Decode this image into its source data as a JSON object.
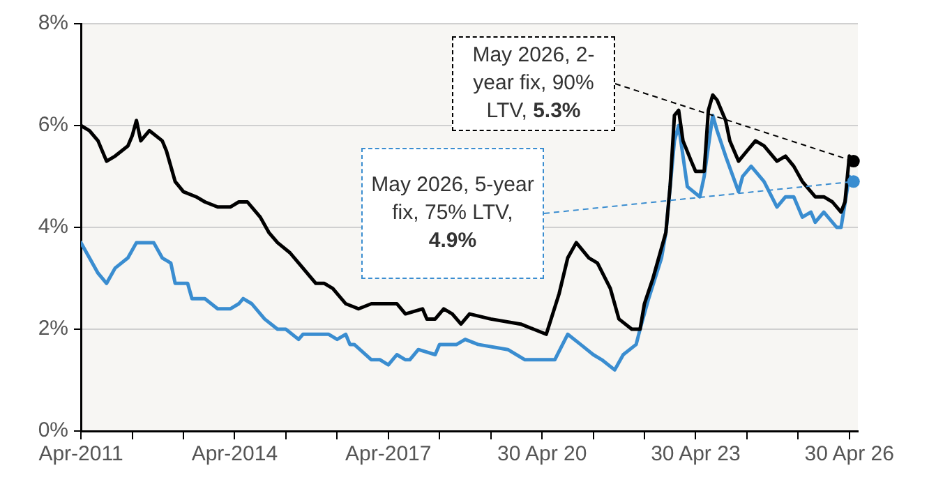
{
  "chart_data": {
    "type": "line",
    "series": [
      {
        "color": "#000000",
        "x": [
          "2011-04",
          "2011-06",
          "2011-08",
          "2011-10",
          "2011-12",
          "2012-03",
          "2012-04",
          "2012-05",
          "2012-06",
          "2012-08",
          "2012-11",
          "2012-12",
          "2013-02",
          "2013-04",
          "2013-07",
          "2013-09",
          "2013-12",
          "2014-03",
          "2014-05",
          "2014-07",
          "2014-10",
          "2014-12",
          "2015-02",
          "2015-05",
          "2015-08",
          "2015-11",
          "2016-01",
          "2016-03",
          "2016-06",
          "2016-09",
          "2016-12",
          "2017-03",
          "2017-06",
          "2017-08",
          "2017-12",
          "2018-01",
          "2018-03",
          "2018-05",
          "2018-07",
          "2018-09",
          "2018-11",
          "2019-04",
          "2019-11",
          "2020-02",
          "2020-05",
          "2020-08",
          "2020-10",
          "2020-12",
          "2021-03",
          "2021-05",
          "2021-08",
          "2021-10",
          "2022-01",
          "2022-03",
          "2022-04",
          "2022-06",
          "2022-09",
          "2022-10",
          "2022-11",
          "2022-12",
          "2023-01",
          "2023-03",
          "2023-04",
          "2023-06",
          "2023-07",
          "2023-08",
          "2023-09",
          "2023-11",
          "2023-12",
          "2024-02",
          "2024-04",
          "2024-06",
          "2024-08",
          "2024-11",
          "2025-01",
          "2025-03",
          "2025-05",
          "2025-08",
          "2025-10",
          "2025-12",
          "2026-02",
          "2026-03",
          "2026-04",
          "2026-05"
        ],
        "values": [
          6.0,
          5.9,
          5.7,
          5.3,
          5.4,
          5.6,
          5.8,
          6.1,
          5.7,
          5.9,
          5.7,
          5.5,
          4.9,
          4.7,
          4.6,
          4.5,
          4.4,
          4.4,
          4.5,
          4.5,
          4.2,
          3.9,
          3.7,
          3.5,
          3.2,
          2.9,
          2.9,
          2.8,
          2.5,
          2.4,
          2.5,
          2.5,
          2.5,
          2.3,
          2.4,
          2.2,
          2.2,
          2.4,
          2.3,
          2.1,
          2.3,
          2.2,
          2.1,
          2.0,
          1.9,
          2.7,
          3.4,
          3.7,
          3.4,
          3.3,
          2.8,
          2.2,
          2.0,
          2.0,
          2.5,
          3.0,
          3.9,
          4.8,
          6.2,
          6.3,
          5.7,
          5.3,
          5.1,
          5.1,
          6.3,
          6.6,
          6.5,
          6.1,
          5.7,
          5.3,
          5.5,
          5.7,
          5.6,
          5.3,
          5.4,
          5.2,
          4.9,
          4.6,
          4.6,
          4.5,
          4.3,
          4.5,
          5.4,
          5.3
        ]
      },
      {
        "color": "#3a8dd0",
        "x": [
          "2011-04",
          "2011-06",
          "2011-08",
          "2011-10",
          "2011-12",
          "2012-03",
          "2012-05",
          "2012-06",
          "2012-09",
          "2012-11",
          "2013-01",
          "2013-02",
          "2013-05",
          "2013-06",
          "2013-09",
          "2013-12",
          "2014-03",
          "2014-05",
          "2014-06",
          "2014-08",
          "2014-11",
          "2015-02",
          "2015-04",
          "2015-07",
          "2015-08",
          "2015-11",
          "2016-02",
          "2016-04",
          "2016-06",
          "2016-07",
          "2016-08",
          "2016-12",
          "2017-02",
          "2017-04",
          "2017-06",
          "2017-08",
          "2017-09",
          "2017-11",
          "2018-03",
          "2018-04",
          "2018-08",
          "2018-10",
          "2019-01",
          "2019-08",
          "2019-12",
          "2020-04",
          "2020-07",
          "2020-10",
          "2021-01",
          "2021-04",
          "2021-06",
          "2021-09",
          "2021-11",
          "2022-02",
          "2022-03",
          "2022-05",
          "2022-08",
          "2022-09",
          "2022-11",
          "2022-12",
          "2023-01",
          "2023-02",
          "2023-05",
          "2023-06",
          "2023-08",
          "2023-09",
          "2023-11",
          "2024-02",
          "2024-03",
          "2024-05",
          "2024-08",
          "2024-11",
          "2025-01",
          "2025-03",
          "2025-05",
          "2025-07",
          "2025-08",
          "2025-10",
          "2026-01",
          "2026-02",
          "2026-04",
          "2026-05"
        ],
        "values": [
          3.7,
          3.4,
          3.1,
          2.9,
          3.2,
          3.4,
          3.7,
          3.7,
          3.7,
          3.4,
          3.3,
          2.9,
          2.9,
          2.6,
          2.6,
          2.4,
          2.4,
          2.5,
          2.6,
          2.5,
          2.2,
          2.0,
          2.0,
          1.8,
          1.9,
          1.9,
          1.9,
          1.8,
          1.9,
          1.7,
          1.7,
          1.4,
          1.4,
          1.3,
          1.5,
          1.4,
          1.4,
          1.6,
          1.5,
          1.7,
          1.7,
          1.8,
          1.7,
          1.6,
          1.4,
          1.4,
          1.4,
          1.9,
          1.7,
          1.5,
          1.4,
          1.2,
          1.5,
          1.7,
          2.0,
          2.6,
          3.4,
          3.9,
          5.7,
          6.0,
          5.4,
          4.8,
          4.6,
          5.0,
          6.2,
          5.9,
          5.4,
          4.7,
          5.0,
          5.2,
          4.9,
          4.4,
          4.6,
          4.6,
          4.2,
          4.3,
          4.1,
          4.3,
          4.0,
          4.0,
          5.0,
          4.9
        ]
      }
    ],
    "xlim": [
      "2011-04",
      "2026-06"
    ],
    "xticks": [
      {
        "value": "2011-04",
        "label": "Apr-2011"
      },
      {
        "value": "2012-04",
        "label": null
      },
      {
        "value": "2013-04",
        "label": null
      },
      {
        "value": "2014-04",
        "label": "Apr-2014"
      },
      {
        "value": "2015-04",
        "label": null
      },
      {
        "value": "2016-04",
        "label": null
      },
      {
        "value": "2017-04",
        "label": "Apr-2017"
      },
      {
        "value": "2018-04",
        "label": null
      },
      {
        "value": "2019-04",
        "label": null
      },
      {
        "value": "2020-04",
        "label": "30 Apr 20"
      },
      {
        "value": "2021-04",
        "label": null
      },
      {
        "value": "2022-04",
        "label": null
      },
      {
        "value": "2023-04",
        "label": "30 Apr 23"
      },
      {
        "value": "2024-04",
        "label": null
      },
      {
        "value": "2025-04",
        "label": null
      },
      {
        "value": "2026-04",
        "label": "30 Apr 26"
      }
    ],
    "ylim": [
      0,
      8
    ],
    "yticks": [
      {
        "value": 0,
        "label": "0%"
      },
      {
        "value": 2,
        "label": "2%"
      },
      {
        "value": 4,
        "label": "4%"
      },
      {
        "value": 6,
        "label": "6%"
      },
      {
        "value": 8,
        "label": "8%"
      }
    ],
    "grid": "y",
    "legend": false,
    "marker": "none",
    "line_style": "solid",
    "annotations": [
      {
        "text": "May 2026, 2-year fix, 90% LTV, 5.3%",
        "x": "2026-05",
        "y": 5.3
      },
      {
        "text": "May 2026, 5-year fix, 75% LTV, 4.9%",
        "x": "2026-05",
        "y": 4.9
      }
    ]
  }
}
